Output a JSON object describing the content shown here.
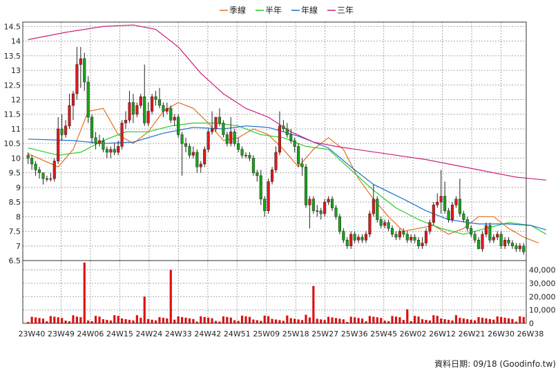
{
  "chart_data": {
    "type": "candlestick",
    "legend": [
      {
        "label": "季線",
        "color": "#e07020"
      },
      {
        "label": "半年",
        "color": "#22cc22"
      },
      {
        "label": "年線",
        "color": "#1a6fd0"
      },
      {
        "label": "三年",
        "color": "#cc1f7a"
      }
    ],
    "x_ticks": [
      "23W40",
      "23W49",
      "24W06",
      "24W15",
      "24W24",
      "24W33",
      "24W42",
      "24W51",
      "25W09",
      "25W18",
      "25W27",
      "25W36",
      "25W45",
      "26W02",
      "26W12",
      "26W21",
      "26W30",
      "26W38"
    ],
    "price_axis": {
      "ticks": [
        "14.5",
        "14",
        "13.5",
        "13",
        "12.5",
        "12",
        "11.5",
        "11",
        "10.5",
        "10",
        "9.5",
        "9",
        "8.5",
        "8",
        "7.5",
        "7",
        "6.5"
      ],
      "ylim": [
        6.5,
        14.65
      ]
    },
    "volume_axis": {
      "ticks": [
        "40,000",
        "30,000",
        "20,000",
        "10,000",
        "0"
      ],
      "ylim": [
        0,
        47000
      ]
    },
    "colors": {
      "up": "#e01818",
      "down": "#18a418",
      "volume": "#dd1111",
      "grid": "#a8a8a8"
    },
    "footer": "資料日期: 09/18  (Goodinfo.tw)",
    "candles_close": [
      10,
      9.8,
      9.6,
      9.5,
      9.3,
      9.3,
      9.3,
      9.9,
      11,
      10.8,
      11.1,
      11.8,
      12.2,
      13.2,
      13.4,
      12.6,
      11.4,
      10.7,
      10.5,
      10.6,
      10.3,
      10.2,
      10.3,
      10.2,
      10.4,
      11.2,
      11.3,
      11.9,
      11.5,
      11.8,
      12.1,
      11.2,
      11.6,
      12.1,
      12,
      11.8,
      11.6,
      11.7,
      11.3,
      11.4,
      10.8,
      10.5,
      10.4,
      10.1,
      10.2,
      9.7,
      9.8,
      10.3,
      10.9,
      11,
      11.4,
      11.2,
      10.8,
      10.5,
      10.9,
      10.5,
      10.3,
      10.1,
      10.1,
      10,
      9.5,
      9.4,
      8.6,
      8.2,
      9.2,
      9.6,
      10.2,
      11.1,
      11,
      10.8,
      10.6,
      10.4,
      9.8,
      9.7,
      8.4,
      8.6,
      8.2,
      8.2,
      8.1,
      8.5,
      8.6,
      8.3,
      8,
      7.5,
      7.2,
      7,
      7.4,
      7.2,
      7.3,
      7.2,
      7.4,
      8.1,
      8.6,
      7.9,
      7.7,
      7.8,
      7.6,
      7.4,
      7.3,
      7.5,
      7.4,
      7.2,
      7.3,
      7.2,
      7,
      7.1,
      7.5,
      7.8,
      8.4,
      8.5,
      8.7,
      8.2,
      7.9,
      8.4,
      8.6,
      8.1,
      7.9,
      7.6,
      7.4,
      7.2,
      6.9,
      7.4,
      7.7,
      7.2,
      7.3,
      7.4,
      7,
      7.2,
      7.1,
      7,
      6.9,
      7,
      6.8
    ],
    "candles_ohlc": [
      [
        10.1,
        10.2,
        9.8,
        10
      ],
      [
        10,
        10.1,
        9.6,
        9.8
      ],
      [
        9.8,
        9.9,
        9.4,
        9.6
      ],
      [
        9.6,
        9.7,
        9.3,
        9.5
      ],
      [
        9.5,
        9.5,
        9.1,
        9.3
      ],
      [
        9.3,
        9.4,
        9.2,
        9.3
      ],
      [
        9.3,
        9.5,
        9.2,
        9.3
      ],
      [
        9.3,
        10,
        9.2,
        9.9
      ],
      [
        9.9,
        11.4,
        9.8,
        11
      ],
      [
        11,
        11.5,
        10.6,
        10.8
      ],
      [
        10.8,
        11.3,
        10.7,
        11.1
      ],
      [
        11.1,
        12.2,
        11,
        11.8
      ],
      [
        11.8,
        12.3,
        11.3,
        12.2
      ],
      [
        12.2,
        13.8,
        12,
        13.2
      ],
      [
        13.2,
        13.8,
        12.4,
        13.4
      ],
      [
        13.4,
        13.6,
        12.3,
        12.6
      ],
      [
        12.6,
        12.8,
        11.2,
        11.4
      ],
      [
        11.4,
        11.5,
        10.5,
        10.7
      ],
      [
        10.7,
        10.9,
        10.3,
        10.5
      ],
      [
        10.5,
        10.8,
        10.4,
        10.6
      ],
      [
        10.6,
        10.7,
        10.2,
        10.3
      ],
      [
        10.3,
        10.4,
        10,
        10.2
      ],
      [
        10.2,
        10.4,
        10,
        10.3
      ],
      [
        10.3,
        10.5,
        10.1,
        10.2
      ],
      [
        10.2,
        10.6,
        10.1,
        10.4
      ],
      [
        10.4,
        11.3,
        10.3,
        11.2
      ],
      [
        11.2,
        11.6,
        11,
        11.3
      ],
      [
        11.3,
        12.3,
        11.2,
        11.9
      ],
      [
        11.9,
        12.2,
        11.2,
        11.5
      ],
      [
        11.5,
        11.9,
        11.4,
        11.8
      ],
      [
        11.8,
        12.2,
        11.7,
        12.1
      ],
      [
        12.1,
        13.2,
        11.1,
        11.2
      ],
      [
        11.2,
        11.9,
        11.1,
        11.6
      ],
      [
        11.6,
        12.2,
        11.5,
        12.1
      ],
      [
        12.1,
        12.3,
        11.8,
        12
      ],
      [
        12,
        12.4,
        11.7,
        11.8
      ],
      [
        11.8,
        11.9,
        11.4,
        11.6
      ],
      [
        11.6,
        11.9,
        11.5,
        11.7
      ],
      [
        11.7,
        11.8,
        11.2,
        11.3
      ],
      [
        11.3,
        11.5,
        11.1,
        11.4
      ],
      [
        11.4,
        11.5,
        10.7,
        10.8
      ],
      [
        10.8,
        10.9,
        9.4,
        10.5
      ],
      [
        10.5,
        10.7,
        10.2,
        10.4
      ],
      [
        10.4,
        10.5,
        10,
        10.1
      ],
      [
        10.1,
        10.4,
        10,
        10.2
      ],
      [
        10.2,
        10.3,
        9.5,
        9.7
      ],
      [
        9.7,
        9.9,
        9.5,
        9.8
      ],
      [
        9.8,
        10.4,
        9.7,
        10.3
      ],
      [
        10.3,
        11,
        10.2,
        10.9
      ],
      [
        10.9,
        11.6,
        10.8,
        11
      ],
      [
        11,
        11.4,
        10.9,
        11.4
      ],
      [
        11.4,
        11.7,
        11.1,
        11.2
      ],
      [
        11.2,
        11.3,
        10.7,
        10.8
      ],
      [
        10.8,
        10.9,
        10.4,
        10.5
      ],
      [
        10.5,
        11.4,
        10.4,
        10.9
      ],
      [
        10.9,
        11,
        10.4,
        10.5
      ],
      [
        10.5,
        10.7,
        10.2,
        10.3
      ],
      [
        10.3,
        10.4,
        10,
        10.1
      ],
      [
        10.1,
        10.2,
        10,
        10.1
      ],
      [
        10.1,
        10.2,
        9.9,
        10
      ],
      [
        10,
        10.1,
        9.4,
        9.5
      ],
      [
        9.5,
        9.6,
        9.2,
        9.4
      ],
      [
        9.4,
        9.6,
        8.4,
        8.6
      ],
      [
        8.6,
        8.7,
        8,
        8.2
      ],
      [
        8.2,
        9.3,
        8.1,
        9.2
      ],
      [
        9.2,
        9.7,
        9.1,
        9.6
      ],
      [
        9.6,
        10.4,
        9.5,
        10.2
      ],
      [
        10.2,
        11.6,
        10.1,
        11.1
      ],
      [
        11.1,
        11.3,
        10.9,
        11
      ],
      [
        11,
        11.2,
        10.7,
        10.8
      ],
      [
        10.8,
        11,
        10.5,
        10.6
      ],
      [
        10.6,
        10.7,
        10.2,
        10.4
      ],
      [
        10.4,
        10.5,
        9.7,
        9.8
      ],
      [
        9.8,
        10,
        9.4,
        9.7
      ],
      [
        9.7,
        9.8,
        8.3,
        8.4
      ],
      [
        8.4,
        8.7,
        7.6,
        8.6
      ],
      [
        8.6,
        8.7,
        8.1,
        8.2
      ],
      [
        8.2,
        8.4,
        8,
        8.2
      ],
      [
        8.2,
        8.3,
        7.9,
        8.1
      ],
      [
        8.1,
        8.6,
        8,
        8.5
      ],
      [
        8.5,
        8.7,
        8.4,
        8.6
      ],
      [
        8.6,
        8.7,
        8.2,
        8.3
      ],
      [
        8.3,
        8.4,
        7.9,
        8
      ],
      [
        8,
        8.1,
        7.4,
        7.5
      ],
      [
        7.5,
        7.6,
        7.1,
        7.2
      ],
      [
        7.2,
        7.3,
        6.9,
        7
      ],
      [
        7,
        7.5,
        6.9,
        7.4
      ],
      [
        7.4,
        7.5,
        7.1,
        7.2
      ],
      [
        7.2,
        7.4,
        7.1,
        7.3
      ],
      [
        7.3,
        7.4,
        7.1,
        7.2
      ],
      [
        7.2,
        7.5,
        7.1,
        7.4
      ],
      [
        7.4,
        8.2,
        7.3,
        8.1
      ],
      [
        8.1,
        9.1,
        8,
        8.6
      ],
      [
        8.6,
        8.7,
        7.8,
        7.9
      ],
      [
        7.9,
        8,
        7.6,
        7.7
      ],
      [
        7.7,
        7.9,
        7.6,
        7.8
      ],
      [
        7.8,
        7.9,
        7.5,
        7.6
      ],
      [
        7.6,
        7.7,
        7.3,
        7.4
      ],
      [
        7.4,
        7.5,
        7.2,
        7.3
      ],
      [
        7.3,
        7.6,
        7.2,
        7.5
      ],
      [
        7.5,
        7.6,
        7.3,
        7.4
      ],
      [
        7.4,
        7.5,
        7.1,
        7.2
      ],
      [
        7.2,
        7.4,
        7.1,
        7.3
      ],
      [
        7.3,
        7.4,
        7.1,
        7.2
      ],
      [
        7.2,
        7.3,
        6.9,
        7
      ],
      [
        7,
        7.3,
        6.9,
        7.1
      ],
      [
        7.1,
        7.6,
        7,
        7.5
      ],
      [
        7.5,
        7.9,
        7.4,
        7.8
      ],
      [
        7.8,
        8.5,
        7.7,
        8.4
      ],
      [
        8.4,
        8.8,
        8.3,
        8.5
      ],
      [
        8.5,
        9.6,
        8.1,
        8.7
      ],
      [
        8.7,
        9.2,
        8.1,
        8.2
      ],
      [
        8.2,
        8.3,
        7.8,
        7.9
      ],
      [
        7.9,
        8.5,
        7.8,
        8.4
      ],
      [
        8.4,
        8.7,
        8.3,
        8.6
      ],
      [
        8.6,
        9.3,
        8,
        8.1
      ],
      [
        8.1,
        8.2,
        7.8,
        7.9
      ],
      [
        7.9,
        8,
        7.5,
        7.6
      ],
      [
        7.6,
        7.7,
        7.3,
        7.4
      ],
      [
        7.4,
        7.5,
        7.1,
        7.2
      ],
      [
        7.2,
        7.3,
        6.9,
        6.9
      ],
      [
        6.9,
        7.5,
        6.8,
        7.4
      ],
      [
        7.4,
        7.8,
        7.3,
        7.7
      ],
      [
        7.7,
        7.8,
        7.1,
        7.2
      ],
      [
        7.2,
        7.4,
        7.1,
        7.3
      ],
      [
        7.3,
        7.5,
        7.2,
        7.4
      ],
      [
        7.4,
        7.5,
        6.9,
        7
      ],
      [
        7,
        7.3,
        6.9,
        7.2
      ],
      [
        7.2,
        7.3,
        7,
        7.1
      ],
      [
        7.1,
        7.2,
        6.9,
        7
      ],
      [
        7,
        7.1,
        6.8,
        6.9
      ],
      [
        6.9,
        7.1,
        6.8,
        7
      ],
      [
        7,
        7.1,
        6.7,
        6.8
      ]
    ],
    "volume_spikes": {
      "12": 6000,
      "15": 45500,
      "31": 20000,
      "38": 40000,
      "76": 28000,
      "101": 10500,
      "140": 6500,
      "173": 8500,
      "177": 5500,
      "192": 5500
    },
    "ma_series": {
      "季線": [
        [
          0,
          10.15
        ],
        [
          8,
          9.7
        ],
        [
          12,
          10.3
        ],
        [
          16,
          11.6
        ],
        [
          20,
          11.7
        ],
        [
          24,
          10.8
        ],
        [
          28,
          10.5
        ],
        [
          32,
          10.9
        ],
        [
          36,
          11.6
        ],
        [
          40,
          11.9
        ],
        [
          44,
          11.7
        ],
        [
          48,
          11.2
        ],
        [
          52,
          10.6
        ],
        [
          56,
          10.7
        ],
        [
          60,
          11.0
        ],
        [
          64,
          10.8
        ],
        [
          68,
          10.3
        ],
        [
          72,
          9.7
        ],
        [
          76,
          10.3
        ],
        [
          80,
          10.7
        ],
        [
          84,
          10.3
        ],
        [
          88,
          9.3
        ],
        [
          92,
          8.6
        ],
        [
          96,
          8.0
        ],
        [
          100,
          7.5
        ],
        [
          104,
          7.6
        ],
        [
          108,
          7.7
        ],
        [
          112,
          7.4
        ],
        [
          116,
          7.6
        ],
        [
          120,
          8.0
        ],
        [
          124,
          8.0
        ],
        [
          128,
          7.6
        ],
        [
          132,
          7.3
        ],
        [
          136,
          7.1
        ]
      ],
      "半年": [
        [
          0,
          10.35
        ],
        [
          8,
          10.1
        ],
        [
          14,
          10.2
        ],
        [
          20,
          10.6
        ],
        [
          26,
          10.9
        ],
        [
          32,
          10.9
        ],
        [
          38,
          11.1
        ],
        [
          44,
          11.2
        ],
        [
          50,
          11.2
        ],
        [
          56,
          11.1
        ],
        [
          62,
          10.8
        ],
        [
          68,
          10.7
        ],
        [
          74,
          10.4
        ],
        [
          80,
          10.3
        ],
        [
          86,
          9.6
        ],
        [
          92,
          8.9
        ],
        [
          98,
          8.3
        ],
        [
          104,
          7.9
        ],
        [
          110,
          7.6
        ],
        [
          116,
          7.4
        ],
        [
          122,
          7.6
        ],
        [
          128,
          7.8
        ],
        [
          134,
          7.7
        ],
        [
          138,
          7.4
        ]
      ],
      "年線": [
        [
          0,
          10.65
        ],
        [
          12,
          10.6
        ],
        [
          20,
          10.5
        ],
        [
          28,
          10.55
        ],
        [
          36,
          10.85
        ],
        [
          44,
          11.05
        ],
        [
          52,
          11.0
        ],
        [
          58,
          11.1
        ],
        [
          64,
          11.05
        ],
        [
          72,
          10.75
        ],
        [
          80,
          10.35
        ],
        [
          86,
          9.7
        ],
        [
          92,
          9.1
        ],
        [
          100,
          8.6
        ],
        [
          106,
          8.2
        ],
        [
          112,
          7.9
        ],
        [
          120,
          7.75
        ],
        [
          128,
          7.75
        ],
        [
          134,
          7.7
        ],
        [
          138,
          7.55
        ]
      ],
      "三年": [
        [
          0,
          14.05
        ],
        [
          10,
          14.3
        ],
        [
          20,
          14.5
        ],
        [
          28,
          14.55
        ],
        [
          34,
          14.4
        ],
        [
          40,
          13.8
        ],
        [
          46,
          12.9
        ],
        [
          52,
          12.2
        ],
        [
          58,
          11.7
        ],
        [
          64,
          11.4
        ],
        [
          70,
          10.9
        ],
        [
          76,
          10.55
        ],
        [
          82,
          10.4
        ],
        [
          90,
          10.25
        ],
        [
          98,
          10.1
        ],
        [
          106,
          9.95
        ],
        [
          114,
          9.75
        ],
        [
          122,
          9.55
        ],
        [
          130,
          9.35
        ],
        [
          138,
          9.25
        ]
      ]
    }
  }
}
